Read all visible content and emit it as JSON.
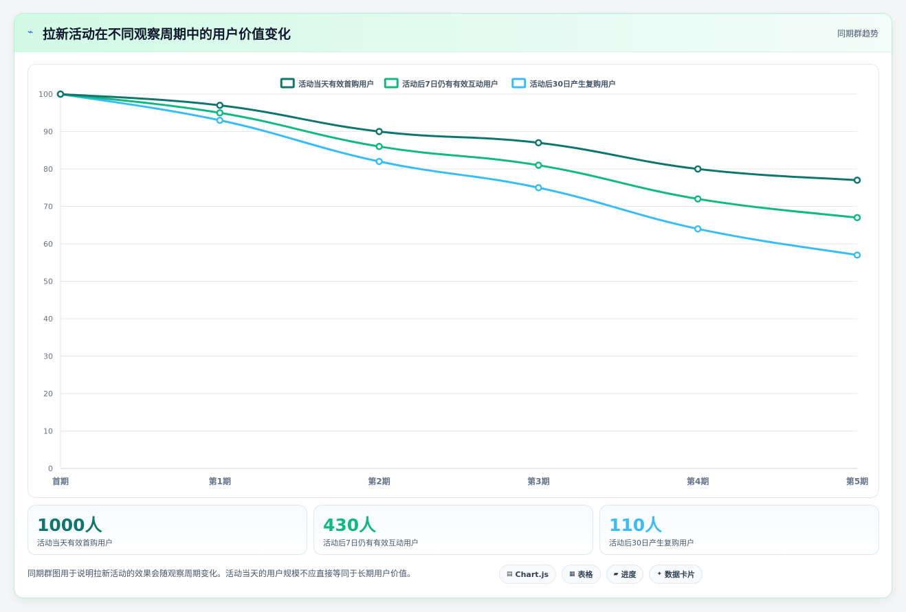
{
  "header": {
    "title": "拉新活动在不同观察周期中的用户价值变化",
    "tag": "同期群趋势",
    "bolt_icon": "⌁"
  },
  "chart_data": {
    "type": "line",
    "categories": [
      "首期",
      "第1期",
      "第2期",
      "第3期",
      "第4期",
      "第5期"
    ],
    "ylim": [
      0,
      100
    ],
    "yticks": [
      0,
      10,
      20,
      30,
      40,
      50,
      60,
      70,
      80,
      90,
      100
    ],
    "grid": true,
    "legend_position": "top-center",
    "series": [
      {
        "name": "活动当天有效首购用户",
        "color": "#0f766e",
        "values": [
          100,
          97,
          90,
          87,
          80,
          77
        ]
      },
      {
        "name": "活动后7日仍有有效互动用户",
        "color": "#10b981",
        "values": [
          100,
          95,
          86,
          81,
          72,
          67
        ]
      },
      {
        "name": "活动后30日产生复购用户",
        "color": "#38bdf8",
        "values": [
          100,
          93,
          82,
          75,
          64,
          57
        ]
      }
    ]
  },
  "stats": [
    {
      "value": "1000人",
      "label": "活动当天有效首购用户",
      "color": "#0f766e"
    },
    {
      "value": "430人",
      "label": "活动后7日仍有有效互动用户",
      "color": "#10b981"
    },
    {
      "value": "110人",
      "label": "活动后30日产生复购用户",
      "color": "#38bdf8"
    }
  ],
  "footer_note": "同期群图用于说明拉新活动的效果会随观察周期变化。活动当天的用户规模不应直接等同于长期用户价值。",
  "chips": [
    {
      "icon": "▤",
      "label": "Chart.js"
    },
    {
      "icon": "▦",
      "label": "表格"
    },
    {
      "icon": "▰",
      "label": "进度"
    },
    {
      "icon": "✦",
      "label": "数据卡片"
    }
  ]
}
